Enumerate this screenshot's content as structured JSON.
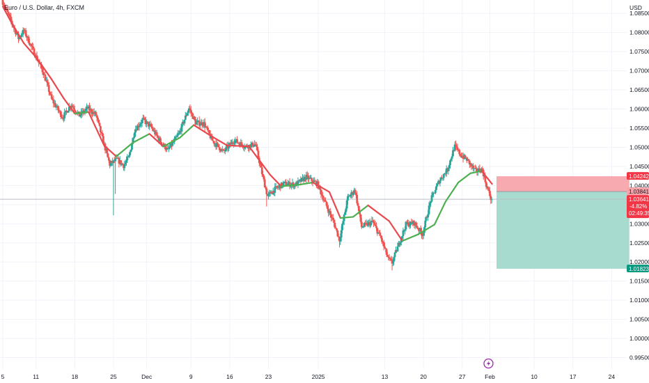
{
  "header": {
    "title": "Euro / U.S. Dollar, 4h, FXCM",
    "currency": "USD"
  },
  "colors": {
    "up": "#26a69a",
    "down": "#ef5350",
    "ma_up": "#4caf50",
    "ma_down": "#e8484e",
    "stop_zone": "#f7a5ab",
    "target_zone": "#a3d9ce",
    "text": "#131722",
    "tag_red": "#f23645",
    "tag_green": "#089981",
    "icon": "#9c27b0"
  },
  "chart_data": {
    "type": "candlestick",
    "symbol": "Euro / U.S. Dollar",
    "interval": "4h",
    "source": "FXCM",
    "y_axis": {
      "currency": "USD",
      "ticks": [
        1.085,
        1.08,
        1.075,
        1.07,
        1.065,
        1.06,
        1.055,
        1.05,
        1.045,
        1.04,
        1.035,
        1.03,
        1.025,
        1.02,
        1.015,
        1.01,
        1.005,
        1.0,
        0.995
      ],
      "tick_labels": [
        "1.08500",
        "1.08000",
        "1.07500",
        "1.07000",
        "1.06500",
        "1.06000",
        "1.05500",
        "1.05000",
        "1.04500",
        "1.04000",
        "1.03500",
        "1.03000",
        "1.02500",
        "1.02000",
        "1.01500",
        "1.01000",
        "1.00500",
        "1.00000",
        "0.99500"
      ],
      "range": [
        0.992,
        1.0885
      ]
    },
    "x_axis": {
      "tick_labels": [
        "5",
        "11",
        "18",
        "25",
        "Dec",
        "9",
        "16",
        "23",
        "2025",
        "13",
        "20",
        "27",
        "Feb",
        "10",
        "17",
        "24"
      ],
      "tick_days": [
        0,
        6,
        13,
        20,
        26,
        34,
        41,
        48,
        57,
        69,
        76,
        83,
        88,
        96,
        103,
        110
      ],
      "range_days": [
        0,
        117
      ]
    },
    "ma_key_points": [
      [
        0,
        1.0868
      ],
      [
        1.6,
        1.0825
      ],
      [
        3.8,
        1.0772
      ],
      [
        6.2,
        1.0732
      ],
      [
        8.8,
        1.0678
      ],
      [
        11,
        1.0628
      ],
      [
        13,
        1.0588
      ],
      [
        15.5,
        1.0592
      ],
      [
        18.3,
        1.0505
      ],
      [
        20.5,
        1.0476
      ],
      [
        23.5,
        1.0512
      ],
      [
        26.5,
        1.0535
      ],
      [
        29,
        1.0502
      ],
      [
        32,
        1.0525
      ],
      [
        34.5,
        1.0558
      ],
      [
        37.8,
        1.0528
      ],
      [
        40.5,
        1.0505
      ],
      [
        44.5,
        1.0502
      ],
      [
        48.3,
        1.0428
      ],
      [
        50.3,
        1.0398
      ],
      [
        53.5,
        1.0402
      ],
      [
        56,
        1.0408
      ],
      [
        59,
        1.0383
      ],
      [
        61,
        1.0315
      ],
      [
        63.3,
        1.0318
      ],
      [
        66,
        1.0348
      ],
      [
        69.8,
        1.0307
      ],
      [
        72.2,
        1.0255
      ],
      [
        75,
        1.0272
      ],
      [
        78,
        1.0298
      ],
      [
        80,
        1.0358
      ],
      [
        82.3,
        1.0408
      ],
      [
        84.5,
        1.0432
      ],
      [
        86.5,
        1.0438
      ],
      [
        88.4,
        1.0404
      ]
    ],
    "candle_key_points": [
      [
        0,
        1.0885
      ],
      [
        1.5,
        1.0835
      ],
      [
        3,
        1.0785
      ],
      [
        4,
        1.0805
      ],
      [
        6,
        1.0742
      ],
      [
        7.5,
        1.0695
      ],
      [
        9,
        1.0625
      ],
      [
        11,
        1.0578
      ],
      [
        12.5,
        1.0612
      ],
      [
        14,
        1.0583
      ],
      [
        15.5,
        1.0602
      ],
      [
        17,
        1.0585
      ],
      [
        18.5,
        1.0505
      ],
      [
        19.5,
        1.0455
      ],
      [
        20.8,
        1.0468
      ],
      [
        22,
        1.0452
      ],
      [
        23,
        1.0476
      ],
      [
        24,
        1.0545
      ],
      [
        25.5,
        1.0572
      ],
      [
        27,
        1.0552
      ],
      [
        28.5,
        1.0518
      ],
      [
        30,
        1.0492
      ],
      [
        32,
        1.0535
      ],
      [
        33.8,
        1.0603
      ],
      [
        35,
        1.0564
      ],
      [
        36.5,
        1.0562
      ],
      [
        38,
        1.0518
      ],
      [
        40,
        1.0488
      ],
      [
        42,
        1.0518
      ],
      [
        44,
        1.0502
      ],
      [
        45.8,
        1.0508
      ],
      [
        47,
        1.0432
      ],
      [
        48,
        1.0372
      ],
      [
        49.5,
        1.0392
      ],
      [
        51,
        1.0405
      ],
      [
        53,
        1.0402
      ],
      [
        55,
        1.0422
      ],
      [
        57,
        1.0404
      ],
      [
        58.5,
        1.0352
      ],
      [
        60,
        1.0302
      ],
      [
        61,
        1.0258
      ],
      [
        62.5,
        1.0368
      ],
      [
        63.8,
        1.0388
      ],
      [
        65,
        1.0292
      ],
      [
        67,
        1.0305
      ],
      [
        68.5,
        1.0262
      ],
      [
        69.8,
        1.0208
      ],
      [
        70.5,
        1.0198
      ],
      [
        71.5,
        1.0238
      ],
      [
        73,
        1.0298
      ],
      [
        74.5,
        1.0302
      ],
      [
        76,
        1.0272
      ],
      [
        77.5,
        1.0362
      ],
      [
        79,
        1.0412
      ],
      [
        80.5,
        1.0442
      ],
      [
        81.8,
        1.0502
      ],
      [
        83,
        1.0478
      ],
      [
        84,
        1.0468
      ],
      [
        85.5,
        1.0438
      ],
      [
        86.8,
        1.0442
      ],
      [
        87.5,
        1.0402
      ],
      [
        88.4,
        1.0364
      ]
    ],
    "spikes": [
      {
        "day": 20.0,
        "low": 1.0322
      },
      {
        "day": 20.3,
        "low": 1.0378
      },
      {
        "day": 47.7,
        "low": 1.0345
      },
      {
        "day": 60.8,
        "low": 1.0238
      },
      {
        "day": 70.3,
        "low": 1.0178
      }
    ],
    "current_price": 1.03641,
    "change_percent": "-4.82%",
    "countdown": "02:49:35",
    "trade": {
      "entry": 1.03841,
      "stop": 1.04242,
      "target": 1.01823,
      "start_day": 89.2,
      "end_day": 113.2
    },
    "price_tags": [
      {
        "label": "1.04242",
        "value": 1.04242,
        "kind": "stop"
      },
      {
        "label": "1.03841",
        "value": 1.03841,
        "kind": "entry"
      },
      {
        "label": "1.03641",
        "value": 1.03641,
        "kind": "current"
      },
      {
        "label": "1.01823",
        "value": 1.01823,
        "kind": "target"
      }
    ]
  }
}
